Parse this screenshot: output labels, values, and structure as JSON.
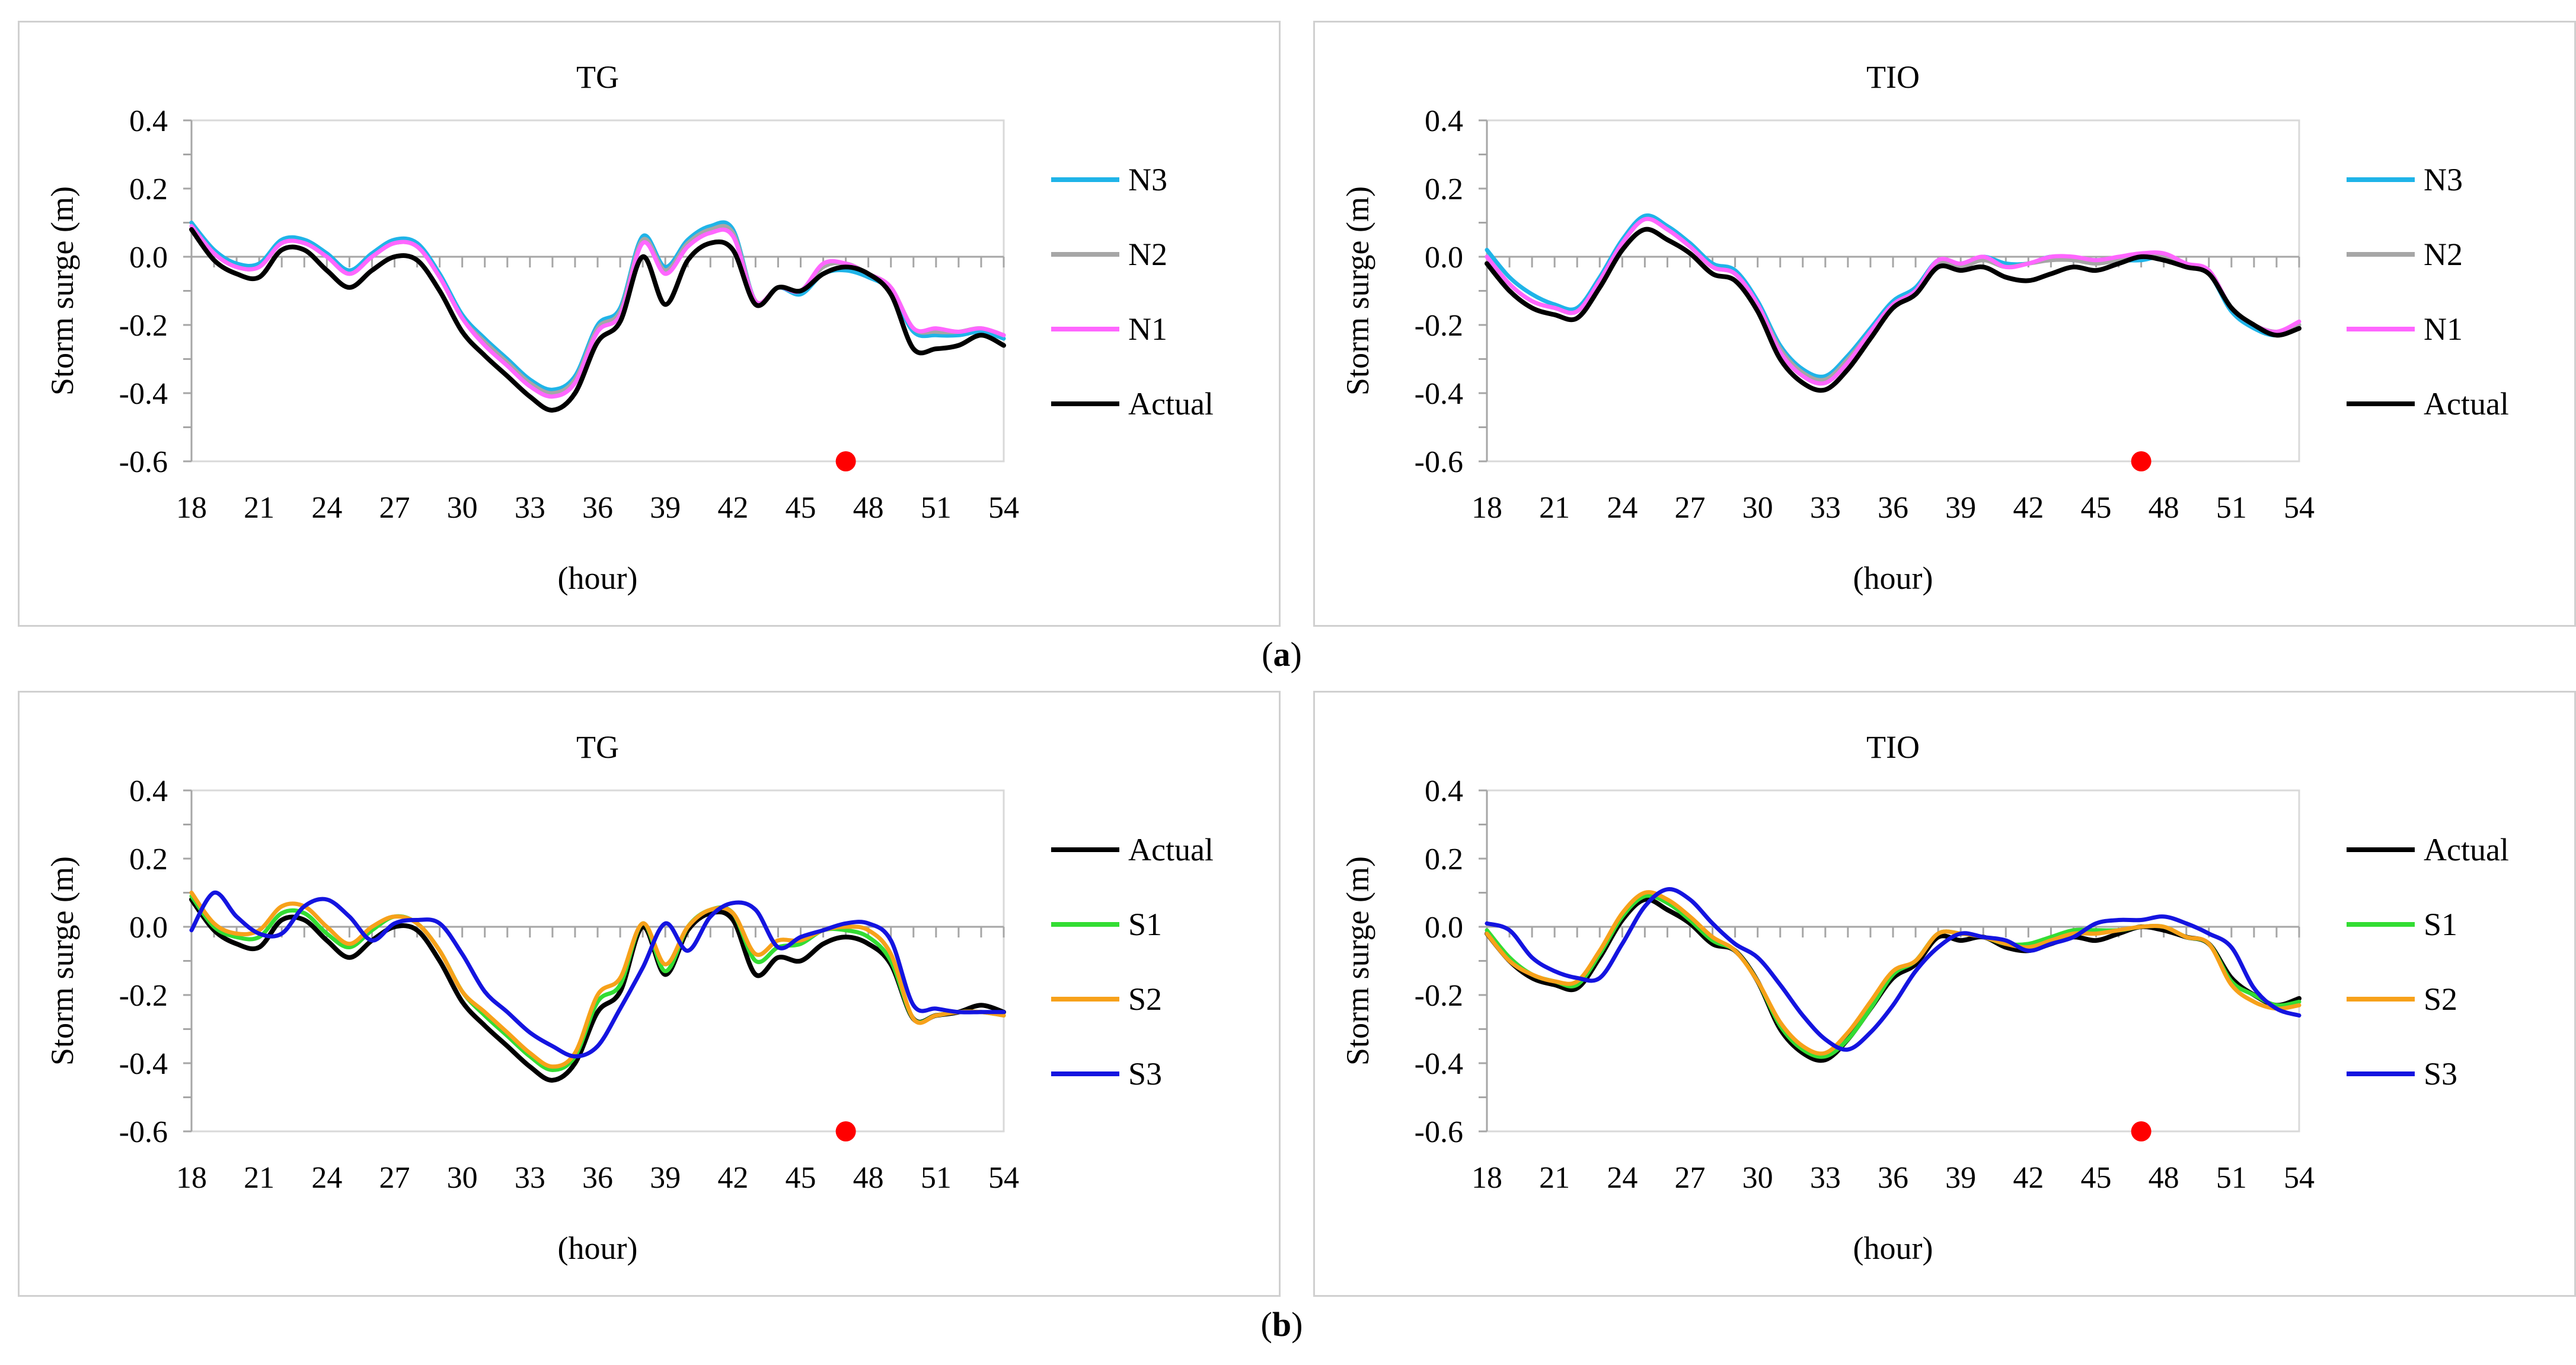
{
  "charts": [
    {
      "id": "a-tg",
      "chart_data": {
        "type": "line",
        "title": "TG",
        "xlabel": "(hour)",
        "ylabel": "Storm surge (m)",
        "xlim": [
          18,
          54
        ],
        "ylim": [
          -0.6,
          0.4
        ],
        "xticks": [
          "18",
          "21",
          "24",
          "27",
          "30",
          "33",
          "36",
          "39",
          "42",
          "45",
          "48",
          "51",
          "54"
        ],
        "yticks": [
          "0.4",
          "0.2",
          "0.0",
          "-0.2",
          "-0.4",
          "-0.6"
        ],
        "legend_position": "right",
        "marker": {
          "x": 47,
          "y": -0.6,
          "color": "#ff0000"
        },
        "x": [
          18,
          19,
          20,
          21,
          22,
          23,
          24,
          25,
          26,
          27,
          28,
          29,
          30,
          31,
          32,
          33,
          34,
          35,
          36,
          37,
          38,
          39,
          40,
          41,
          42,
          43,
          44,
          45,
          46,
          47,
          48,
          49,
          50,
          51,
          52,
          53,
          54
        ],
        "series": [
          {
            "name": "N3",
            "color": "#1fb4e8",
            "values": [
              0.1,
              0.02,
              -0.02,
              -0.02,
              0.05,
              0.05,
              0.01,
              -0.04,
              0.01,
              0.05,
              0.04,
              -0.05,
              -0.17,
              -0.24,
              -0.3,
              -0.36,
              -0.39,
              -0.35,
              -0.2,
              -0.15,
              0.06,
              -0.03,
              0.05,
              0.09,
              0.08,
              -0.13,
              -0.09,
              -0.11,
              -0.05,
              -0.04,
              -0.06,
              -0.1,
              -0.22,
              -0.23,
              -0.23,
              -0.22,
              -0.24
            ]
          },
          {
            "name": "N2",
            "color": "#a6a6a6",
            "values": [
              0.09,
              0.01,
              -0.03,
              -0.03,
              0.04,
              0.04,
              0.0,
              -0.05,
              0.0,
              0.04,
              0.03,
              -0.06,
              -0.18,
              -0.25,
              -0.31,
              -0.37,
              -0.4,
              -0.36,
              -0.21,
              -0.16,
              0.05,
              -0.04,
              0.04,
              0.08,
              0.07,
              -0.13,
              -0.09,
              -0.1,
              -0.03,
              -0.02,
              -0.05,
              -0.09,
              -0.21,
              -0.22,
              -0.22,
              -0.21,
              -0.23
            ]
          },
          {
            "name": "N1",
            "color": "#ff66ff",
            "values": [
              0.09,
              0.01,
              -0.03,
              -0.03,
              0.04,
              0.04,
              0.0,
              -0.05,
              0.0,
              0.04,
              0.03,
              -0.06,
              -0.18,
              -0.26,
              -0.32,
              -0.38,
              -0.41,
              -0.37,
              -0.22,
              -0.17,
              0.04,
              -0.05,
              0.03,
              0.07,
              0.06,
              -0.13,
              -0.09,
              -0.1,
              -0.02,
              -0.02,
              -0.05,
              -0.09,
              -0.21,
              -0.21,
              -0.22,
              -0.21,
              -0.23
            ]
          },
          {
            "name": "Actual",
            "color": "#000000",
            "values": [
              0.08,
              -0.01,
              -0.05,
              -0.06,
              0.02,
              0.02,
              -0.04,
              -0.09,
              -0.04,
              0.0,
              -0.01,
              -0.1,
              -0.22,
              -0.29,
              -0.35,
              -0.41,
              -0.45,
              -0.4,
              -0.25,
              -0.19,
              0.0,
              -0.14,
              -0.01,
              0.04,
              0.02,
              -0.14,
              -0.09,
              -0.1,
              -0.05,
              -0.03,
              -0.05,
              -0.11,
              -0.27,
              -0.27,
              -0.26,
              -0.23,
              -0.26
            ]
          }
        ]
      }
    },
    {
      "id": "a-tio",
      "chart_data": {
        "type": "line",
        "title": "TIO",
        "xlabel": "(hour)",
        "ylabel": "Storm surge (m)",
        "xlim": [
          18,
          54
        ],
        "ylim": [
          -0.6,
          0.4
        ],
        "xticks": [
          "18",
          "21",
          "24",
          "27",
          "30",
          "33",
          "36",
          "39",
          "42",
          "45",
          "48",
          "51",
          "54"
        ],
        "yticks": [
          "0.4",
          "0.2",
          "0.0",
          "-0.2",
          "-0.4",
          "-0.6"
        ],
        "legend_position": "right",
        "marker": {
          "x": 47,
          "y": -0.6,
          "color": "#ff0000"
        },
        "x": [
          18,
          19,
          20,
          21,
          22,
          23,
          24,
          25,
          26,
          27,
          28,
          29,
          30,
          31,
          32,
          33,
          34,
          35,
          36,
          37,
          38,
          39,
          40,
          41,
          42,
          43,
          44,
          45,
          46,
          47,
          48,
          49,
          50,
          51,
          52,
          53,
          54
        ],
        "series": [
          {
            "name": "N3",
            "color": "#1fb4e8",
            "values": [
              0.02,
              -0.06,
              -0.11,
              -0.14,
              -0.15,
              -0.06,
              0.05,
              0.12,
              0.09,
              0.04,
              -0.02,
              -0.04,
              -0.13,
              -0.26,
              -0.33,
              -0.35,
              -0.29,
              -0.21,
              -0.13,
              -0.09,
              -0.01,
              -0.02,
              0.0,
              -0.02,
              -0.02,
              0.0,
              -0.01,
              -0.01,
              -0.01,
              -0.01,
              0.0,
              -0.03,
              -0.05,
              -0.16,
              -0.21,
              -0.23,
              -0.2
            ]
          },
          {
            "name": "N2",
            "color": "#a6a6a6",
            "values": [
              0.0,
              -0.08,
              -0.13,
              -0.15,
              -0.16,
              -0.07,
              0.04,
              0.11,
              0.08,
              0.03,
              -0.03,
              -0.05,
              -0.14,
              -0.27,
              -0.34,
              -0.36,
              -0.3,
              -0.22,
              -0.14,
              -0.1,
              -0.02,
              -0.03,
              -0.01,
              -0.03,
              -0.02,
              -0.01,
              -0.01,
              -0.02,
              -0.01,
              0.0,
              0.0,
              -0.03,
              -0.05,
              -0.15,
              -0.2,
              -0.22,
              -0.2
            ]
          },
          {
            "name": "N1",
            "color": "#ff66ff",
            "values": [
              0.0,
              -0.08,
              -0.13,
              -0.15,
              -0.16,
              -0.07,
              0.04,
              0.11,
              0.08,
              0.03,
              -0.03,
              -0.05,
              -0.14,
              -0.28,
              -0.35,
              -0.37,
              -0.31,
              -0.22,
              -0.14,
              -0.1,
              -0.01,
              -0.02,
              0.0,
              -0.03,
              -0.02,
              0.0,
              0.0,
              -0.01,
              0.0,
              0.01,
              0.01,
              -0.02,
              -0.04,
              -0.15,
              -0.2,
              -0.22,
              -0.19
            ]
          },
          {
            "name": "Actual",
            "color": "#000000",
            "values": [
              -0.02,
              -0.1,
              -0.15,
              -0.17,
              -0.18,
              -0.09,
              0.02,
              0.08,
              0.05,
              0.01,
              -0.05,
              -0.07,
              -0.16,
              -0.3,
              -0.37,
              -0.39,
              -0.33,
              -0.24,
              -0.15,
              -0.11,
              -0.03,
              -0.04,
              -0.03,
              -0.06,
              -0.07,
              -0.05,
              -0.03,
              -0.04,
              -0.02,
              0.0,
              -0.01,
              -0.03,
              -0.05,
              -0.15,
              -0.2,
              -0.23,
              -0.21
            ]
          }
        ]
      }
    },
    {
      "id": "b-tg",
      "chart_data": {
        "type": "line",
        "title": "TG",
        "xlabel": "(hour)",
        "ylabel": "Storm surge (m)",
        "xlim": [
          18,
          54
        ],
        "ylim": [
          -0.6,
          0.4
        ],
        "xticks": [
          "18",
          "21",
          "24",
          "27",
          "30",
          "33",
          "36",
          "39",
          "42",
          "45",
          "48",
          "51",
          "54"
        ],
        "yticks": [
          "0.4",
          "0.2",
          "0.0",
          "-0.2",
          "-0.4",
          "-0.6"
        ],
        "legend_position": "right",
        "marker": {
          "x": 47,
          "y": -0.6,
          "color": "#ff0000"
        },
        "x": [
          18,
          19,
          20,
          21,
          22,
          23,
          24,
          25,
          26,
          27,
          28,
          29,
          30,
          31,
          32,
          33,
          34,
          35,
          36,
          37,
          38,
          39,
          40,
          41,
          42,
          43,
          44,
          45,
          46,
          47,
          48,
          49,
          50,
          51,
          52,
          53,
          54
        ],
        "series": [
          {
            "name": "Actual",
            "color": "#000000",
            "values": [
              0.08,
              -0.01,
              -0.05,
              -0.06,
              0.02,
              0.02,
              -0.04,
              -0.09,
              -0.04,
              0.0,
              -0.01,
              -0.1,
              -0.22,
              -0.29,
              -0.35,
              -0.41,
              -0.45,
              -0.4,
              -0.25,
              -0.19,
              0.0,
              -0.14,
              -0.01,
              0.04,
              0.02,
              -0.14,
              -0.09,
              -0.1,
              -0.05,
              -0.03,
              -0.05,
              -0.11,
              -0.27,
              -0.26,
              -0.25,
              -0.23,
              -0.25
            ]
          },
          {
            "name": "S1",
            "color": "#33dd33",
            "values": [
              0.09,
              0.0,
              -0.03,
              -0.03,
              0.04,
              0.04,
              -0.02,
              -0.06,
              -0.01,
              0.03,
              0.01,
              -0.07,
              -0.19,
              -0.26,
              -0.32,
              -0.38,
              -0.42,
              -0.38,
              -0.22,
              -0.17,
              0.01,
              -0.13,
              0.0,
              0.05,
              0.04,
              -0.1,
              -0.06,
              -0.05,
              -0.01,
              -0.01,
              -0.03,
              -0.1,
              -0.27,
              -0.26,
              -0.25,
              -0.25,
              -0.26
            ]
          },
          {
            "name": "S2",
            "color": "#f7a11a",
            "values": [
              0.1,
              0.01,
              -0.02,
              -0.01,
              0.06,
              0.06,
              0.0,
              -0.05,
              0.0,
              0.03,
              0.01,
              -0.07,
              -0.19,
              -0.25,
              -0.31,
              -0.37,
              -0.41,
              -0.37,
              -0.2,
              -0.15,
              0.01,
              -0.11,
              0.0,
              0.05,
              0.04,
              -0.08,
              -0.04,
              -0.04,
              -0.01,
              0.0,
              -0.01,
              -0.08,
              -0.27,
              -0.26,
              -0.25,
              -0.25,
              -0.26
            ]
          },
          {
            "name": "S3",
            "color": "#1414e0",
            "values": [
              -0.01,
              0.1,
              0.03,
              -0.02,
              -0.02,
              0.06,
              0.08,
              0.03,
              -0.04,
              0.01,
              0.02,
              0.01,
              -0.08,
              -0.19,
              -0.25,
              -0.31,
              -0.35,
              -0.38,
              -0.35,
              -0.24,
              -0.12,
              0.01,
              -0.07,
              0.03,
              0.07,
              0.05,
              -0.06,
              -0.03,
              -0.01,
              0.01,
              0.01,
              -0.04,
              -0.23,
              -0.24,
              -0.25,
              -0.25,
              -0.25
            ]
          }
        ]
      }
    },
    {
      "id": "b-tio",
      "chart_data": {
        "type": "line",
        "title": "TIO",
        "xlabel": "(hour)",
        "ylabel": "Storm surge (m)",
        "xlim": [
          18,
          54
        ],
        "ylim": [
          -0.6,
          0.4
        ],
        "xticks": [
          "18",
          "21",
          "24",
          "27",
          "30",
          "33",
          "36",
          "39",
          "42",
          "45",
          "48",
          "51",
          "54"
        ],
        "yticks": [
          "0.4",
          "0.2",
          "0.0",
          "-0.2",
          "-0.4",
          "-0.6"
        ],
        "legend_position": "right",
        "marker": {
          "x": 47,
          "y": -0.6,
          "color": "#ff0000"
        },
        "x": [
          18,
          19,
          20,
          21,
          22,
          23,
          24,
          25,
          26,
          27,
          28,
          29,
          30,
          31,
          32,
          33,
          34,
          35,
          36,
          37,
          38,
          39,
          40,
          41,
          42,
          43,
          44,
          45,
          46,
          47,
          48,
          49,
          50,
          51,
          52,
          53,
          54
        ],
        "series": [
          {
            "name": "Actual",
            "color": "#000000",
            "values": [
              -0.02,
              -0.1,
              -0.15,
              -0.17,
              -0.18,
              -0.09,
              0.02,
              0.08,
              0.05,
              0.01,
              -0.05,
              -0.07,
              -0.16,
              -0.3,
              -0.37,
              -0.39,
              -0.33,
              -0.24,
              -0.15,
              -0.11,
              -0.03,
              -0.04,
              -0.03,
              -0.06,
              -0.07,
              -0.05,
              -0.03,
              -0.04,
              -0.02,
              0.0,
              -0.01,
              -0.03,
              -0.05,
              -0.15,
              -0.2,
              -0.23,
              -0.21
            ]
          },
          {
            "name": "S1",
            "color": "#33dd33",
            "values": [
              -0.01,
              -0.09,
              -0.14,
              -0.16,
              -0.17,
              -0.08,
              0.03,
              0.09,
              0.07,
              0.02,
              -0.04,
              -0.07,
              -0.16,
              -0.29,
              -0.36,
              -0.38,
              -0.33,
              -0.24,
              -0.14,
              -0.1,
              -0.02,
              -0.02,
              -0.03,
              -0.05,
              -0.05,
              -0.03,
              -0.01,
              -0.01,
              -0.01,
              0.0,
              0.0,
              -0.03,
              -0.05,
              -0.16,
              -0.2,
              -0.23,
              -0.22
            ]
          },
          {
            "name": "S2",
            "color": "#f7a11a",
            "values": [
              -0.02,
              -0.1,
              -0.14,
              -0.16,
              -0.16,
              -0.07,
              0.04,
              0.1,
              0.08,
              0.03,
              -0.03,
              -0.07,
              -0.16,
              -0.28,
              -0.35,
              -0.37,
              -0.31,
              -0.22,
              -0.13,
              -0.1,
              -0.02,
              -0.02,
              -0.03,
              -0.05,
              -0.06,
              -0.04,
              -0.02,
              -0.02,
              -0.01,
              0.0,
              0.0,
              -0.03,
              -0.05,
              -0.17,
              -0.22,
              -0.24,
              -0.23
            ]
          },
          {
            "name": "S3",
            "color": "#1414e0",
            "values": [
              0.01,
              -0.01,
              -0.09,
              -0.13,
              -0.15,
              -0.15,
              -0.05,
              0.06,
              0.11,
              0.08,
              0.01,
              -0.05,
              -0.09,
              -0.17,
              -0.26,
              -0.33,
              -0.36,
              -0.31,
              -0.23,
              -0.13,
              -0.06,
              -0.02,
              -0.03,
              -0.04,
              -0.07,
              -0.05,
              -0.03,
              0.01,
              0.02,
              0.02,
              0.03,
              0.01,
              -0.02,
              -0.06,
              -0.18,
              -0.24,
              -0.26
            ]
          }
        ]
      }
    }
  ],
  "subfigure_labels": {
    "a": "a",
    "b": "b"
  },
  "style": {
    "axis_color": "#a6a6a6",
    "marker_color": "#ff0000"
  }
}
